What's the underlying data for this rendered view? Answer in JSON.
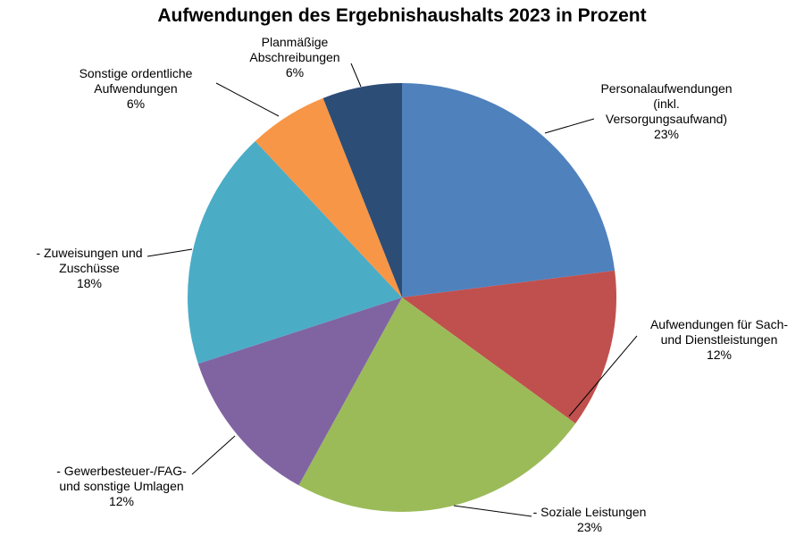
{
  "chart_data": {
    "type": "pie",
    "title": "Aufwendungen des Ergebnishaushalts 2023 in Prozent",
    "slices": [
      {
        "label_lines": [
          "Personalaufwendungen",
          "(inkl.",
          "Versorgungsaufwand)"
        ],
        "value": 23,
        "value_label": "23%",
        "color": "#4F81BD"
      },
      {
        "label_lines": [
          "Aufwendungen für Sach-",
          "und Dienstleistungen"
        ],
        "value": 12,
        "value_label": "12%",
        "color": "#C0504D"
      },
      {
        "label_lines": [
          "- Soziale Leistungen"
        ],
        "value": 23,
        "value_label": "23%",
        "color": "#9BBB59"
      },
      {
        "label_lines": [
          "- Gewerbesteuer-/FAG-",
          "und sonstige Umlagen"
        ],
        "value": 12,
        "value_label": "12%",
        "color": "#8064A2"
      },
      {
        "label_lines": [
          "- Zuweisungen und",
          "Zuschüsse"
        ],
        "value": 18,
        "value_label": "18%",
        "color": "#4BACC6"
      },
      {
        "label_lines": [
          "Sonstige ordentliche",
          "Aufwendungen"
        ],
        "value": 6,
        "value_label": "6%",
        "color": "#F79646"
      },
      {
        "label_lines": [
          "Planmäßige",
          "Abschreibungen"
        ],
        "value": 6,
        "value_label": "6%",
        "color": "#2C4D75"
      }
    ],
    "start": "12 o'clock",
    "direction": "clockwise",
    "legend": "none",
    "labels": "outside with leader lines"
  }
}
